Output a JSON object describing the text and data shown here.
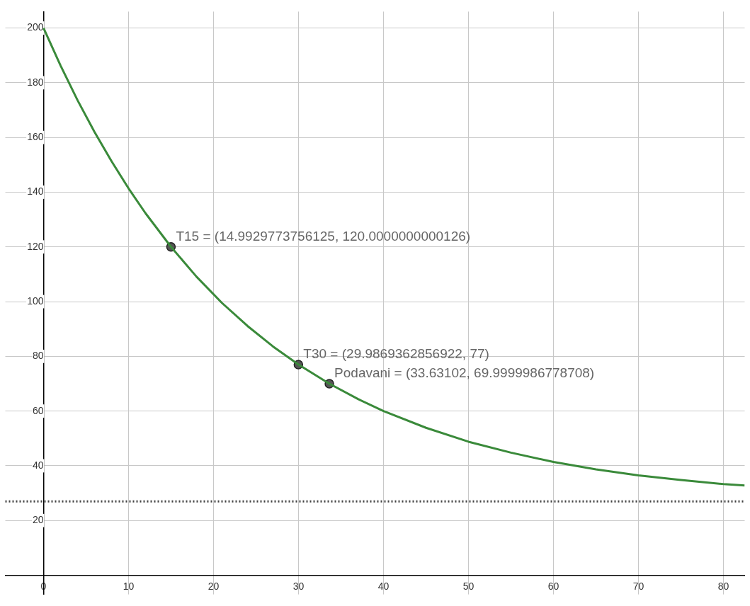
{
  "chart_data": {
    "type": "line",
    "series": [
      {
        "color": "#3a8a3a",
        "x": [
          0,
          2,
          4,
          6,
          8,
          10,
          12,
          15,
          18,
          21,
          24,
          27,
          30,
          33.63,
          37,
          40,
          45,
          50,
          55,
          60,
          65,
          70,
          75,
          80,
          82.5
        ],
        "values": [
          200,
          186.3,
          173.6,
          162,
          151.3,
          141.4,
          132.3,
          120,
          109.1,
          99.5,
          91.1,
          83.6,
          77,
          70,
          64.4,
          60,
          53.9,
          48.8,
          44.8,
          41.4,
          38.7,
          36.5,
          34.8,
          33.3,
          32.8
        ]
      },
      {
        "type": "scatter",
        "color": "#555555",
        "x": [
          14.993,
          29.987,
          33.631
        ],
        "values": [
          120,
          77,
          70
        ]
      }
    ],
    "xlim": [
      -4.5,
      82.5
    ],
    "ylim": [
      -7,
      206
    ],
    "xticks": [
      0,
      10,
      20,
      30,
      40,
      50,
      60,
      70,
      80
    ],
    "yticks": [
      {
        "value": 0,
        "label": null
      },
      20,
      40,
      60,
      80,
      100,
      120,
      140,
      160,
      180,
      200
    ],
    "ref_lines": [
      {
        "axis": "y",
        "value": 27,
        "color": "#444444",
        "line_style": "dotted"
      }
    ],
    "annotations": [
      {
        "text": "T15 = (14.9929773756125, 120.0000000000126)",
        "x": 14.993,
        "y": 120
      },
      {
        "text": "T30 = (29.9869362856922, 77)",
        "x": 29.987,
        "y": 77
      },
      {
        "text": "Podavani = (33.63102, 69.9999986778708)",
        "x": 33.631,
        "y": 70
      }
    ],
    "grid": true,
    "legend": false,
    "line_style": "solid"
  }
}
